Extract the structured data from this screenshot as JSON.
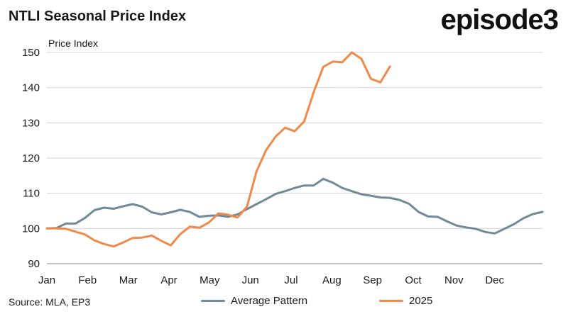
{
  "header": {
    "title": "NTLI Seasonal Price Index",
    "logo_text": "episode3"
  },
  "footer": {
    "source": "Source: MLA, EP3"
  },
  "colors": {
    "average": "#6f8b99",
    "y2025": "#f08a4b",
    "grid": "#d4d4d4",
    "axis": "#8a8a8a"
  },
  "chart_data": {
    "type": "line",
    "title": "NTLI Seasonal Price Index",
    "ylabel": "Price Index",
    "xlabel": "",
    "x_unit": "week of year",
    "x_tick_labels": [
      "Jan",
      "Feb",
      "Mar",
      "Apr",
      "May",
      "Jun",
      "Jul",
      "Aug",
      "Sep",
      "Oct",
      "Nov",
      "Dec"
    ],
    "ylim": [
      90,
      152
    ],
    "y_ticks": [
      90,
      100,
      110,
      120,
      130,
      140,
      150
    ],
    "grid": "horizontal",
    "legend_position": "bottom",
    "series": [
      {
        "name": "Average Pattern",
        "color_key": "average",
        "x": [
          1,
          2,
          3,
          4,
          5,
          6,
          7,
          8,
          9,
          10,
          11,
          12,
          13,
          14,
          15,
          16,
          17,
          18,
          19,
          20,
          21,
          22,
          23,
          24,
          25,
          26,
          27,
          28,
          29,
          30,
          31,
          32,
          33,
          34,
          35,
          36,
          37,
          38,
          39,
          40,
          41,
          42,
          43,
          44,
          45,
          46,
          47,
          48,
          49,
          50,
          51,
          52,
          53
        ],
        "values": [
          100,
          100.1,
          101.4,
          101.4,
          103,
          105.2,
          105.9,
          105.6,
          106.3,
          106.9,
          106.2,
          104.6,
          104,
          104.6,
          105.3,
          104.7,
          103.3,
          103.6,
          103.7,
          103.3,
          104,
          105.5,
          106.9,
          108.3,
          109.8,
          110.6,
          111.5,
          112.2,
          112.2,
          114.1,
          113,
          111.5,
          110.6,
          109.7,
          109.3,
          108.8,
          108.7,
          108.1,
          107,
          104.7,
          103.4,
          103.3,
          102,
          100.8,
          100.3,
          99.9,
          99,
          98.6,
          99.9,
          101.2,
          102.9,
          104.1,
          104.7
        ]
      },
      {
        "name": "2025",
        "color_key": "y2025",
        "x": [
          1,
          2,
          3,
          4,
          5,
          6,
          7,
          8,
          9,
          10,
          11,
          12,
          13,
          14,
          15,
          16,
          17,
          18,
          19,
          20,
          21,
          22,
          23,
          24,
          25,
          26,
          27,
          28,
          29,
          30,
          31,
          32,
          33,
          34,
          35,
          36,
          37
        ],
        "values": [
          100,
          100,
          99.9,
          99.1,
          98.3,
          96.6,
          95.6,
          94.9,
          96,
          97.3,
          97.4,
          98,
          96.5,
          95.2,
          98.4,
          100.5,
          100.2,
          101.7,
          104.3,
          103.9,
          103.1,
          106.2,
          116.2,
          122.2,
          126.1,
          128.6,
          127.6,
          130.4,
          138.7,
          145.9,
          147.4,
          147.2,
          150,
          148.2,
          142.5,
          141.5,
          146
        ]
      }
    ]
  },
  "legend": {
    "average_label": "Average Pattern",
    "y2025_label": "2025"
  }
}
